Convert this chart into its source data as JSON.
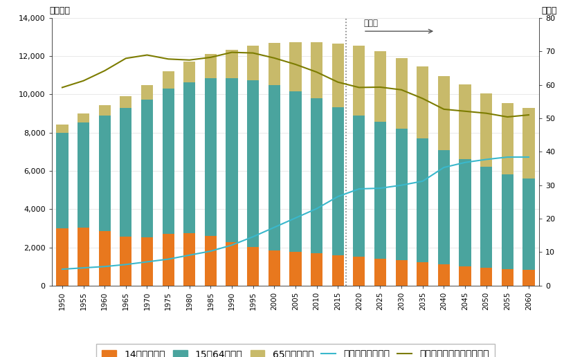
{
  "years": [
    1950,
    1955,
    1960,
    1965,
    1970,
    1975,
    1980,
    1985,
    1990,
    1995,
    2000,
    2005,
    2010,
    2015,
    2020,
    2025,
    2030,
    2035,
    2040,
    2045,
    2050,
    2055,
    2060
  ],
  "under14": [
    2979,
    3016,
    2843,
    2553,
    2515,
    2722,
    2751,
    2603,
    2254,
    2001,
    1847,
    1759,
    1684,
    1595,
    1503,
    1407,
    1321,
    1213,
    1107,
    1011,
    935,
    877,
    818
  ],
  "age15_64": [
    5017,
    5517,
    6047,
    6736,
    7212,
    7581,
    7883,
    8251,
    8590,
    8726,
    8622,
    8409,
    8103,
    7728,
    7406,
    7170,
    6875,
    6494,
    5978,
    5597,
    5275,
    4930,
    4793
  ],
  "over65": [
    416,
    476,
    539,
    623,
    739,
    887,
    1065,
    1247,
    1489,
    1826,
    2204,
    2576,
    2925,
    3347,
    3619,
    3677,
    3716,
    3741,
    3868,
    3919,
    3841,
    3734,
    3673
  ],
  "aging_rate": [
    4.9,
    5.3,
    5.7,
    6.3,
    7.1,
    7.9,
    9.1,
    10.3,
    12.1,
    14.6,
    17.4,
    20.2,
    23.0,
    26.6,
    28.9,
    29.1,
    30.0,
    31.2,
    35.3,
    36.8,
    37.7,
    38.4,
    38.4
  ],
  "working_ratio": [
    59.2,
    61.2,
    64.2,
    67.9,
    68.9,
    67.7,
    67.4,
    68.2,
    69.7,
    69.5,
    68.0,
    66.1,
    63.8,
    60.8,
    59.2,
    59.3,
    58.5,
    55.9,
    52.7,
    52.1,
    51.5,
    50.4,
    51.0
  ],
  "forecast_year": 2017,
  "bar_color_under14": "#e8781e",
  "bar_color_15_64": "#4aa49e",
  "bar_color_over65": "#c8ba6a",
  "line_color_aging": "#3ab8cc",
  "line_color_working": "#7c7c00",
  "ylabel_left": "（万人）",
  "ylabel_right": "（％）",
  "ylim_left": [
    0,
    14000
  ],
  "ylim_right": [
    0,
    80
  ],
  "yticks_left": [
    0,
    2000,
    4000,
    6000,
    8000,
    10000,
    12000,
    14000
  ],
  "yticks_right": [
    0,
    10,
    20,
    30,
    40,
    50,
    60,
    70,
    80
  ],
  "forecast_label": "予測値",
  "legend_labels": [
    "14歳以下人口",
    "15～64歳人口",
    "65歳以上人口",
    "高齢化率（右軸）",
    "生産年齢人口割合（右軸）"
  ],
  "bar_width": 2.8,
  "xlim": [
    1947.5,
    2062.5
  ]
}
